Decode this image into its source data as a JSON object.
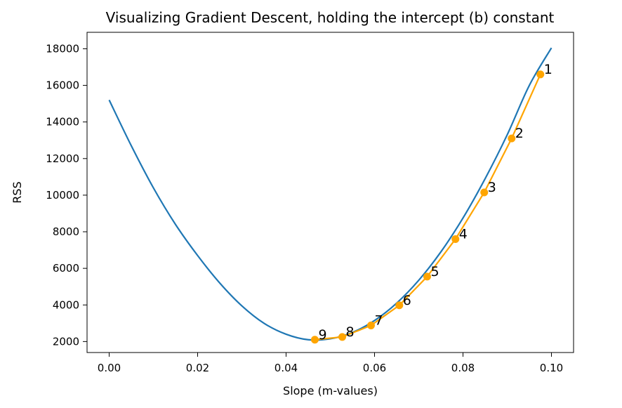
{
  "chart_data": {
    "type": "line",
    "title": "Visualizing Gradient Descent, holding the intercept (b) constant",
    "xlabel": "Slope (m-values)",
    "ylabel": "RSS",
    "xlim": [
      -0.005,
      0.105
    ],
    "ylim": [
      1400,
      18900
    ],
    "grid": false,
    "x_ticks": [
      0.0,
      0.02,
      0.04,
      0.06,
      0.08,
      0.1
    ],
    "x_tick_labels": [
      "0.00",
      "0.02",
      "0.04",
      "0.06",
      "0.08",
      "0.10"
    ],
    "y_ticks": [
      2000,
      4000,
      6000,
      8000,
      10000,
      12000,
      14000,
      16000,
      18000
    ],
    "y_tick_labels": [
      "2000",
      "4000",
      "6000",
      "8000",
      "10000",
      "12000",
      "14000",
      "16000",
      "18000"
    ],
    "series": [
      {
        "kind": "curve",
        "color": "#1f77b4",
        "x": [
          0.0,
          0.005,
          0.01,
          0.015,
          0.02,
          0.025,
          0.03,
          0.035,
          0.04,
          0.045,
          0.05,
          0.055,
          0.06,
          0.065,
          0.07,
          0.075,
          0.08,
          0.085,
          0.09,
          0.095,
          0.1
        ],
        "y": [
          15200,
          12700,
          10400,
          8400,
          6700,
          5200,
          3950,
          3000,
          2400,
          2100,
          2150,
          2500,
          3150,
          4100,
          5350,
          6900,
          8750,
          10900,
          13300,
          16000,
          18050
        ]
      },
      {
        "kind": "gradient-steps",
        "color": "#ffa500",
        "x": [
          0.0975,
          0.091,
          0.0848,
          0.0783,
          0.0719,
          0.0656,
          0.0592,
          0.0527,
          0.0465
        ],
        "y": [
          16600,
          13100,
          10150,
          7600,
          5550,
          3980,
          2880,
          2250,
          2100
        ],
        "labels": [
          "1",
          "2",
          "3",
          "4",
          "5",
          "6",
          "7",
          "8",
          "9"
        ]
      }
    ]
  }
}
